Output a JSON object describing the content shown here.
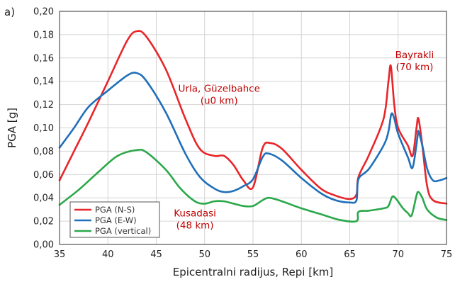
{
  "panel_label": "a)",
  "chart_data": {
    "type": "line",
    "title": "",
    "xlabel": "Epicentralni radijus, Repi [km]",
    "ylabel": "PGA [g]",
    "xlim": [
      35,
      75
    ],
    "ylim": [
      0,
      0.2
    ],
    "xticks": [
      35,
      40,
      45,
      50,
      55,
      60,
      65,
      70,
      75
    ],
    "yticks": [
      0,
      0.02,
      0.04,
      0.06,
      0.08,
      0.1,
      0.12,
      0.14,
      0.16,
      0.18,
      0.2
    ],
    "xtick_labels": [
      "35",
      "40",
      "45",
      "50",
      "55",
      "60",
      "65",
      "70",
      "75"
    ],
    "ytick_labels": [
      "0,00",
      "0,02",
      "0,04",
      "0,06",
      "0,08",
      "0,10",
      "0,12",
      "0,14",
      "0,16",
      "0,18",
      "0,20"
    ],
    "grid": true,
    "legend_position": "bottom-left",
    "series": [
      {
        "name": "PGA (N-S)",
        "color": "#e8262a",
        "points": [
          [
            35,
            0.055
          ],
          [
            36.5,
            0.08
          ],
          [
            38,
            0.105
          ],
          [
            40,
            0.14
          ],
          [
            42,
            0.175
          ],
          [
            43,
            0.183
          ],
          [
            44,
            0.178
          ],
          [
            46,
            0.15
          ],
          [
            48,
            0.108
          ],
          [
            49.5,
            0.082
          ],
          [
            51,
            0.076
          ],
          [
            52,
            0.076
          ],
          [
            53,
            0.068
          ],
          [
            54,
            0.055
          ],
          [
            55,
            0.049
          ],
          [
            56,
            0.083
          ],
          [
            56.8,
            0.087
          ],
          [
            58,
            0.082
          ],
          [
            60,
            0.064
          ],
          [
            62,
            0.048
          ],
          [
            63.5,
            0.042
          ],
          [
            65,
            0.039
          ],
          [
            65.7,
            0.043
          ],
          [
            65.9,
            0.058
          ],
          [
            67,
            0.077
          ],
          [
            68.5,
            0.108
          ],
          [
            69,
            0.14
          ],
          [
            69.25,
            0.153
          ],
          [
            69.6,
            0.12
          ],
          [
            70,
            0.1
          ],
          [
            71,
            0.085
          ],
          [
            71.5,
            0.076
          ],
          [
            71.9,
            0.1
          ],
          [
            72.1,
            0.108
          ],
          [
            72.5,
            0.085
          ],
          [
            73,
            0.05
          ],
          [
            73.6,
            0.038
          ],
          [
            75,
            0.035
          ]
        ]
      },
      {
        "name": "PGA (E-W)",
        "color": "#1f6fb9",
        "points": [
          [
            35,
            0.083
          ],
          [
            36.5,
            0.1
          ],
          [
            38,
            0.118
          ],
          [
            40,
            0.132
          ],
          [
            42,
            0.145
          ],
          [
            43,
            0.147
          ],
          [
            44,
            0.14
          ],
          [
            46,
            0.113
          ],
          [
            48,
            0.078
          ],
          [
            49.5,
            0.058
          ],
          [
            51,
            0.048
          ],
          [
            52,
            0.045
          ],
          [
            53,
            0.046
          ],
          [
            54,
            0.05
          ],
          [
            55,
            0.056
          ],
          [
            56,
            0.075
          ],
          [
            56.6,
            0.078
          ],
          [
            58,
            0.072
          ],
          [
            60,
            0.057
          ],
          [
            62,
            0.044
          ],
          [
            63.5,
            0.038
          ],
          [
            65,
            0.036
          ],
          [
            65.7,
            0.038
          ],
          [
            65.9,
            0.056
          ],
          [
            67,
            0.065
          ],
          [
            68.5,
            0.085
          ],
          [
            69,
            0.097
          ],
          [
            69.3,
            0.112
          ],
          [
            69.6,
            0.108
          ],
          [
            70,
            0.095
          ],
          [
            71,
            0.075
          ],
          [
            71.5,
            0.066
          ],
          [
            72,
            0.092
          ],
          [
            72.1,
            0.097
          ],
          [
            72.5,
            0.085
          ],
          [
            73,
            0.065
          ],
          [
            73.6,
            0.055
          ],
          [
            74.3,
            0.055
          ],
          [
            75,
            0.057
          ]
        ]
      },
      {
        "name": "PGA (vertical)",
        "color": "#2aa84a",
        "points": [
          [
            35,
            0.034
          ],
          [
            37,
            0.047
          ],
          [
            39,
            0.062
          ],
          [
            41,
            0.076
          ],
          [
            43,
            0.081
          ],
          [
            44,
            0.079
          ],
          [
            46,
            0.064
          ],
          [
            47.5,
            0.048
          ],
          [
            49,
            0.037
          ],
          [
            50,
            0.035
          ],
          [
            51,
            0.037
          ],
          [
            52,
            0.037
          ],
          [
            53,
            0.035
          ],
          [
            54,
            0.033
          ],
          [
            55,
            0.033
          ],
          [
            56,
            0.038
          ],
          [
            56.7,
            0.04
          ],
          [
            58,
            0.037
          ],
          [
            60,
            0.031
          ],
          [
            62,
            0.026
          ],
          [
            64,
            0.021
          ],
          [
            65.7,
            0.02
          ],
          [
            65.9,
            0.028
          ],
          [
            67,
            0.029
          ],
          [
            68.5,
            0.031
          ],
          [
            69,
            0.033
          ],
          [
            69.4,
            0.041
          ],
          [
            69.8,
            0.039
          ],
          [
            70.5,
            0.031
          ],
          [
            71,
            0.027
          ],
          [
            71.4,
            0.025
          ],
          [
            71.9,
            0.042
          ],
          [
            72.1,
            0.045
          ],
          [
            72.5,
            0.04
          ],
          [
            73,
            0.03
          ],
          [
            74,
            0.023
          ],
          [
            75,
            0.021
          ]
        ]
      }
    ],
    "annotations": [
      {
        "lines": [
          "Urla, Güzelbahce",
          "(u0 km)"
        ],
        "x": 51.5,
        "y": 0.131,
        "color": "#c00000"
      },
      {
        "lines": [
          "Bayrakli",
          "(70 km)"
        ],
        "x": 71.7,
        "y": 0.16,
        "color": "#c00000"
      },
      {
        "lines": [
          "Kusadasi",
          "(48 km)"
        ],
        "x": 49,
        "y": 0.024,
        "color": "#c00000"
      }
    ]
  }
}
